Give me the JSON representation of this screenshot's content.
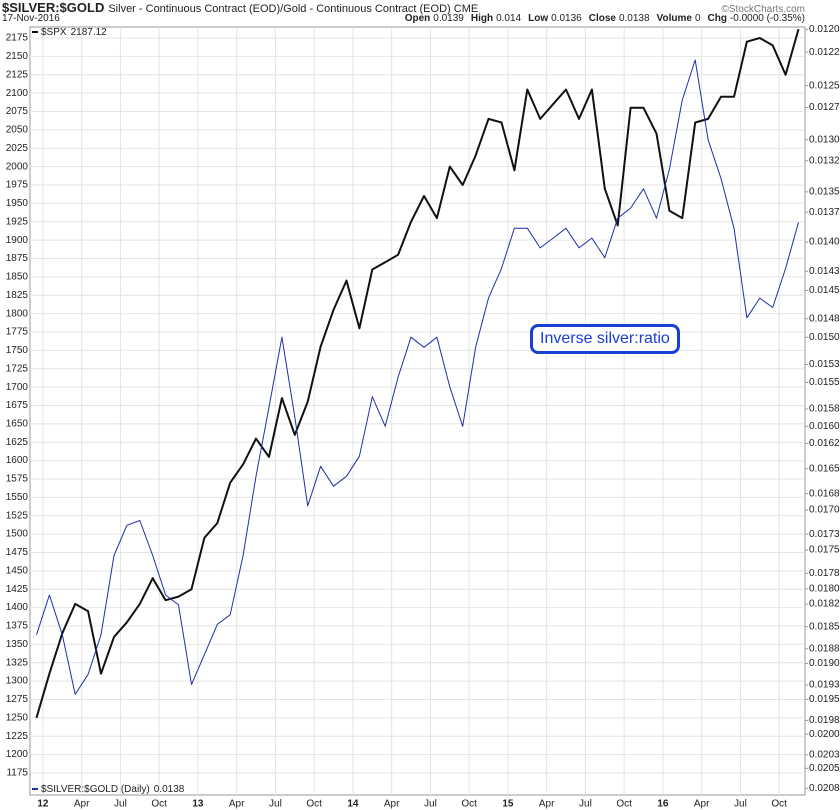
{
  "header": {
    "symbol": "$SILVER:$GOLD",
    "description": "Silver - Continuous Contract (EOD)/Gold - Continuous Contract (EOD)",
    "exchange": "CME",
    "credit": "©StockCharts.com",
    "date": "17-Nov-2016",
    "stats": [
      {
        "label": "Open",
        "value": 0.0139
      },
      {
        "label": "High",
        "value": 0.014
      },
      {
        "label": "Low",
        "value": 0.0136
      },
      {
        "label": "Close",
        "value": 0.0138
      },
      {
        "label": "Volume",
        "value": 0
      },
      {
        "label": "Chg",
        "value": "-0.0000 (-0.35%)"
      }
    ]
  },
  "chart_data": {
    "type": "line",
    "annotation": "Inverse silver:ratio",
    "x": [
      "2011-12",
      "2012-01",
      "2012-02",
      "2012-03",
      "2012-04",
      "2012-05",
      "2012-06",
      "2012-07",
      "2012-08",
      "2012-09",
      "2012-10",
      "2012-11",
      "2012-12",
      "2013-01",
      "2013-02",
      "2013-03",
      "2013-04",
      "2013-05",
      "2013-06",
      "2013-07",
      "2013-08",
      "2013-09",
      "2013-10",
      "2013-11",
      "2013-12",
      "2014-01",
      "2014-02",
      "2014-03",
      "2014-04",
      "2014-05",
      "2014-06",
      "2014-07",
      "2014-08",
      "2014-09",
      "2014-10",
      "2014-11",
      "2014-12",
      "2015-01",
      "2015-02",
      "2015-03",
      "2015-04",
      "2015-05",
      "2015-06",
      "2015-07",
      "2015-08",
      "2015-09",
      "2015-10",
      "2015-11",
      "2015-12",
      "2016-01",
      "2016-02",
      "2016-03",
      "2016-04",
      "2016-05",
      "2016-06",
      "2016-07",
      "2016-08",
      "2016-09",
      "2016-10",
      "2016-11"
    ],
    "xlim": [
      "2011-12",
      "2016-11"
    ],
    "xticks": [
      {
        "value": "2012-01",
        "label": "12"
      },
      {
        "value": "2012-04",
        "label": "Apr"
      },
      {
        "value": "2012-07",
        "label": "Jul"
      },
      {
        "value": "2012-10",
        "label": "Oct"
      },
      {
        "value": "2013-01",
        "label": "13"
      },
      {
        "value": "2013-04",
        "label": "Apr"
      },
      {
        "value": "2013-07",
        "label": "Jul"
      },
      {
        "value": "2013-10",
        "label": "Oct"
      },
      {
        "value": "2014-01",
        "label": "14"
      },
      {
        "value": "2014-04",
        "label": "Apr"
      },
      {
        "value": "2014-07",
        "label": "Jul"
      },
      {
        "value": "2014-10",
        "label": "Oct"
      },
      {
        "value": "2015-01",
        "label": "15"
      },
      {
        "value": "2015-04",
        "label": "Apr"
      },
      {
        "value": "2015-07",
        "label": "Jul"
      },
      {
        "value": "2015-10",
        "label": "Oct"
      },
      {
        "value": "2016-01",
        "label": "16"
      },
      {
        "value": "2016-04",
        "label": "Apr"
      },
      {
        "value": "2016-07",
        "label": "Jul"
      },
      {
        "value": "2016-10",
        "label": "Oct"
      }
    ],
    "ylim": [
      1145,
      2190
    ],
    "yticks": [
      1175,
      1200,
      1225,
      1250,
      1275,
      1300,
      1325,
      1350,
      1375,
      1400,
      1425,
      1450,
      1475,
      1500,
      1525,
      1550,
      1575,
      1600,
      1625,
      1650,
      1675,
      1700,
      1725,
      1750,
      1775,
      1800,
      1825,
      1850,
      1875,
      1900,
      1925,
      1950,
      1975,
      2000,
      2025,
      2050,
      2075,
      2100,
      2125,
      2150,
      2175
    ],
    "y2lim": [
      0.01198,
      0.0209
    ],
    "y2log": true,
    "y2inverted": true,
    "y2ticks": [
      {
        "value": 0.012,
        "label": "0.0120"
      },
      0.0122,
      0.0125,
      0.0127,
      {
        "value": 0.013,
        "label": "0.0130"
      },
      0.0132,
      0.0135,
      0.0137,
      {
        "value": 0.014,
        "label": "0.0140"
      },
      0.0143,
      0.0145,
      0.0148,
      {
        "value": 0.015,
        "label": "0.0150"
      },
      0.0153,
      0.0155,
      0.0158,
      {
        "value": 0.016,
        "label": "0.0160"
      },
      0.0162,
      0.0165,
      0.0168,
      {
        "value": 0.017,
        "label": "0.0170"
      },
      0.0173,
      0.0175,
      0.0178,
      {
        "value": 0.018,
        "label": "0.0180"
      },
      0.0182,
      0.0185,
      0.0188,
      {
        "value": 0.019,
        "label": "0.0190"
      },
      0.0193,
      0.0195,
      0.0198,
      {
        "value": 0.02,
        "label": "0.0200"
      },
      0.0203,
      0.0205,
      0.0208
    ],
    "grid": true,
    "series": [
      {
        "name": "$SPX",
        "color": "#111111",
        "width": 2,
        "axis": "y",
        "values": [
          1250,
          1310,
          1365,
          1405,
          1395,
          1310,
          1360,
          1380,
          1405,
          1440,
          1410,
          1415,
          1425,
          1495,
          1515,
          1570,
          1595,
          1630,
          1605,
          1685,
          1635,
          1680,
          1755,
          1805,
          1845,
          1780,
          1860,
          1870,
          1880,
          1925,
          1960,
          1930,
          2000,
          1975,
          2015,
          2065,
          2060,
          1995,
          2105,
          2065,
          2085,
          2105,
          2065,
          2105,
          1970,
          1920,
          2080,
          2080,
          2045,
          1940,
          1930,
          2060,
          2065,
          2095,
          2095,
          2170,
          2175,
          2165,
          2125,
          2187.12
        ]
      },
      {
        "name": "$SILVER:$GOLD (Daily)",
        "color": "#1f2fa8",
        "width": 1,
        "axis": "y2",
        "values": [
          0.01861,
          0.01808,
          0.01861,
          0.01943,
          0.01915,
          0.01861,
          0.01757,
          0.01719,
          0.01713,
          0.01757,
          0.01808,
          0.01821,
          0.01929,
          0.01888,
          0.01847,
          0.01834,
          0.01757,
          0.01659,
          0.01578,
          0.015,
          0.01589,
          0.01695,
          0.01647,
          0.01671,
          0.01659,
          0.01635,
          0.01566,
          0.016,
          0.01544,
          0.015,
          0.01511,
          0.015,
          0.01555,
          0.016,
          0.01511,
          0.01458,
          0.01427,
          0.01386,
          0.01386,
          0.01406,
          0.01396,
          0.01386,
          0.01406,
          0.01396,
          0.01416,
          0.01376,
          0.01366,
          0.01347,
          0.01376,
          0.01328,
          0.01263,
          0.01227,
          0.013,
          0.01337,
          0.01386,
          0.01479,
          0.01458,
          0.01468,
          0.01427,
          0.0138
        ]
      }
    ]
  }
}
